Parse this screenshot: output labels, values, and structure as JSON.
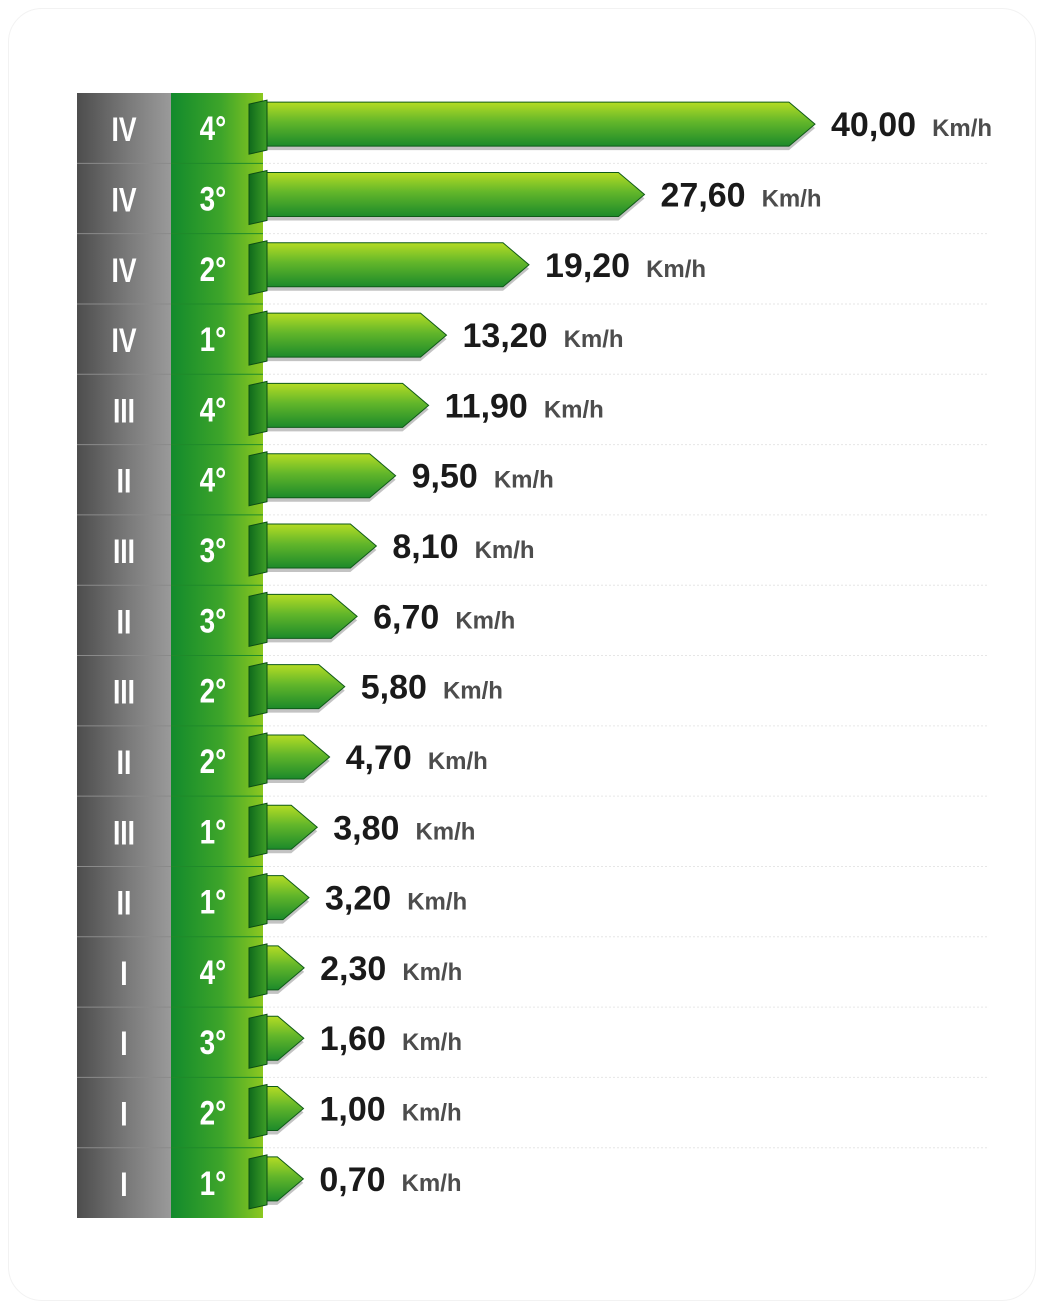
{
  "chart_data": {
    "type": "bar",
    "orientation": "horizontal",
    "unit": "Km/h",
    "rows": [
      {
        "range": "IV",
        "gear": "4°",
        "label": "40,00",
        "value": 40.0
      },
      {
        "range": "IV",
        "gear": "3°",
        "label": "27,60",
        "value": 27.6
      },
      {
        "range": "IV",
        "gear": "2°",
        "label": "19,20",
        "value": 19.2
      },
      {
        "range": "IV",
        "gear": "1°",
        "label": "13,20",
        "value": 13.2
      },
      {
        "range": "III",
        "gear": "4°",
        "label": "11,90",
        "value": 11.9
      },
      {
        "range": "II",
        "gear": "4°",
        "label": "9,50",
        "value": 9.5
      },
      {
        "range": "III",
        "gear": "3°",
        "label": "8,10",
        "value": 8.1
      },
      {
        "range": "II",
        "gear": "3°",
        "label": "6,70",
        "value": 6.7
      },
      {
        "range": "III",
        "gear": "2°",
        "label": "5,80",
        "value": 5.8
      },
      {
        "range": "II",
        "gear": "2°",
        "label": "4,70",
        "value": 4.7
      },
      {
        "range": "III",
        "gear": "1°",
        "label": "3,80",
        "value": 3.8
      },
      {
        "range": "II",
        "gear": "1°",
        "label": "3,20",
        "value": 3.2
      },
      {
        "range": "I",
        "gear": "4°",
        "label": "2,30",
        "value": 2.3
      },
      {
        "range": "I",
        "gear": "3°",
        "label": "1,60",
        "value": 1.6
      },
      {
        "range": "I",
        "gear": "2°",
        "label": "1,00",
        "value": 1.0
      },
      {
        "range": "I",
        "gear": "1°",
        "label": "0,70",
        "value": 0.7
      }
    ],
    "colors": {
      "bar_light": "#a8d420",
      "bar_dark": "#1f8a2a",
      "bar_edge": "#0f5a18",
      "range_column": "#6e6e6e",
      "gear_column": "#2a9a2a",
      "grid_line": "#e6e6e6"
    },
    "grid": true
  }
}
